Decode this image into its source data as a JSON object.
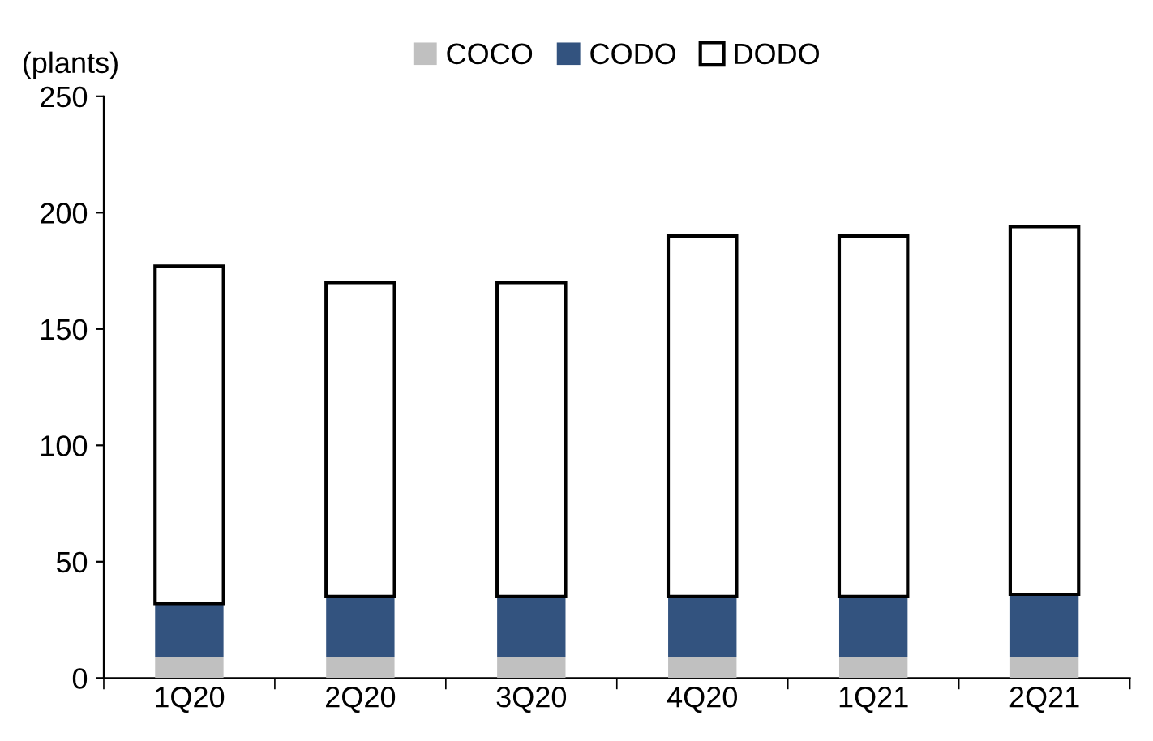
{
  "chart_data": {
    "type": "bar",
    "stacked": true,
    "ylabel": "(plants)",
    "categories": [
      "1Q20",
      "2Q20",
      "3Q20",
      "4Q20",
      "1Q21",
      "2Q21"
    ],
    "series": [
      {
        "name": "COCO",
        "color": "#c0c0c0",
        "values": [
          9,
          9,
          9,
          9,
          9,
          9
        ]
      },
      {
        "name": "CODO",
        "color": "#33537f",
        "values": [
          23,
          26,
          26,
          26,
          26,
          27
        ]
      },
      {
        "name": "DODO",
        "color": "#ffffff",
        "values": [
          145,
          135,
          135,
          155,
          155,
          158
        ]
      }
    ],
    "ylim": [
      0,
      250
    ],
    "yticks": [
      0,
      50,
      100,
      150,
      200,
      250
    ],
    "grid": false,
    "legend": "top"
  }
}
